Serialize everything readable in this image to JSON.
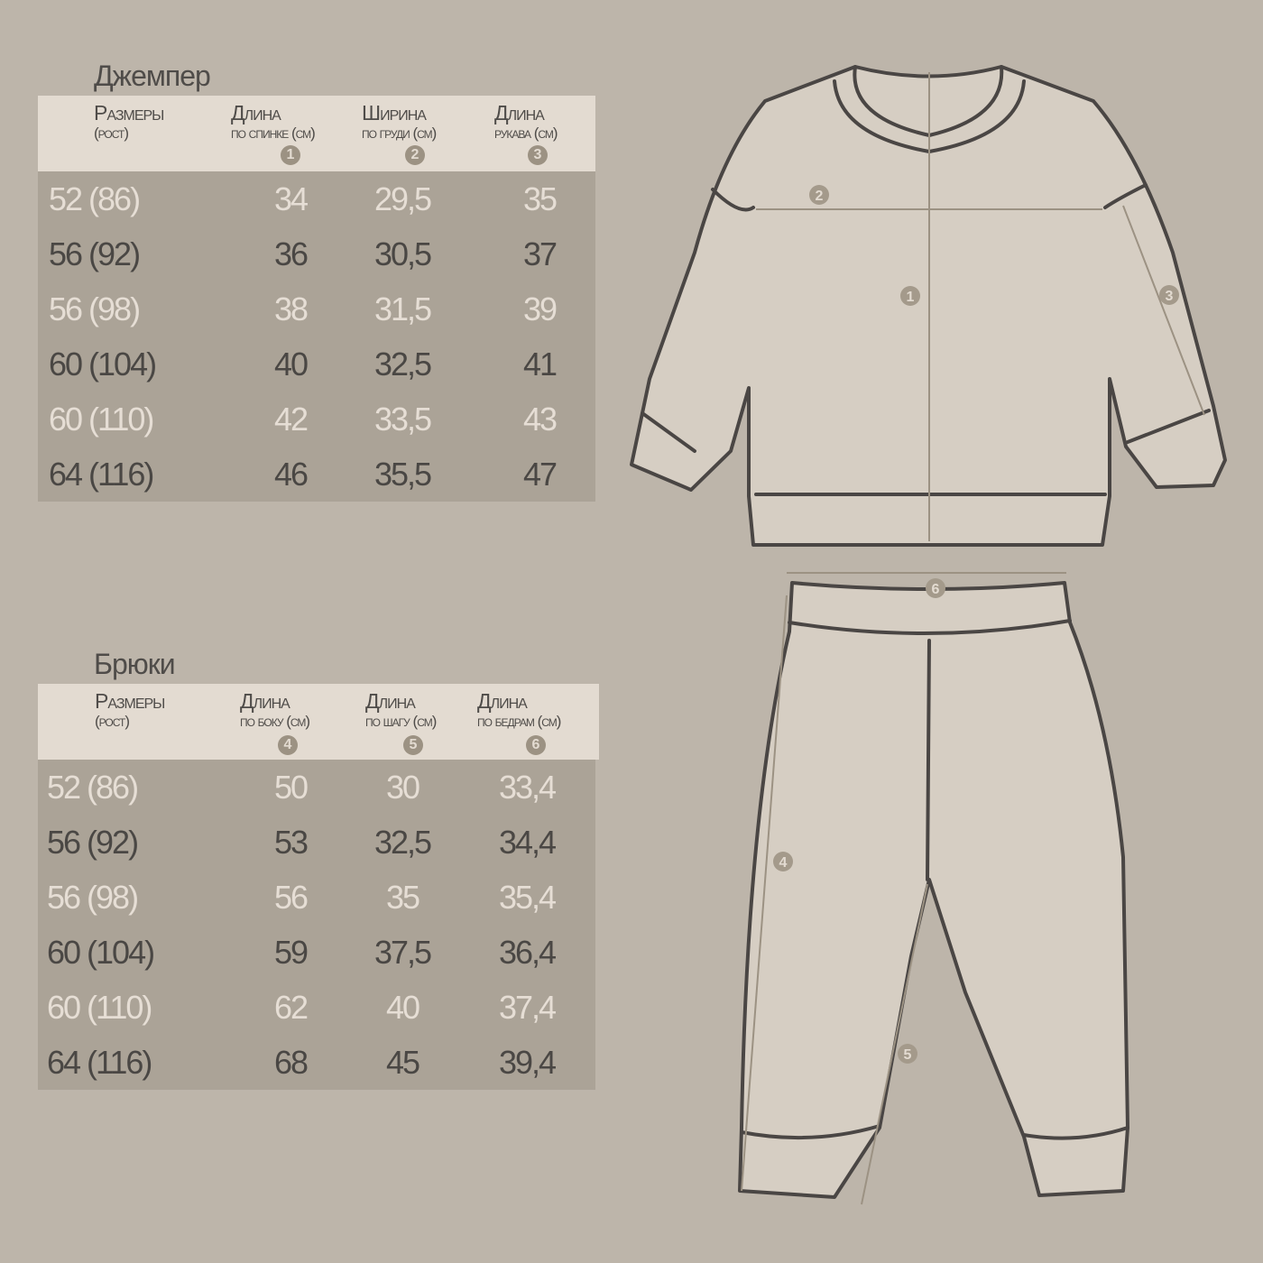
{
  "jumper": {
    "title": "Джемпер",
    "headers": [
      {
        "a": "Размеры",
        "b": "(рост)"
      },
      {
        "a": "Длина",
        "b": "по спинке (см)",
        "n": "1"
      },
      {
        "a": "Ширина",
        "b": "по груди (см)",
        "n": "2"
      },
      {
        "a": "Длина",
        "b": "рукава (см)",
        "n": "3"
      }
    ],
    "rows": [
      [
        "52 (86)",
        "34",
        "29,5",
        "35"
      ],
      [
        "56 (92)",
        "36",
        "30,5",
        "37"
      ],
      [
        "56 (98)",
        "38",
        "31,5",
        "39"
      ],
      [
        "60 (104)",
        "40",
        "32,5",
        "41"
      ],
      [
        "60 (110)",
        "42",
        "33,5",
        "43"
      ],
      [
        "64 (116)",
        "46",
        "35,5",
        "47"
      ]
    ]
  },
  "pants": {
    "title": "Брюки",
    "headers": [
      {
        "a": "Размеры",
        "b": "(рост)"
      },
      {
        "a": "Длина",
        "b": "по  боку (см)",
        "n": "4"
      },
      {
        "a": "Длина",
        "b": "по шагу (см)",
        "n": "5"
      },
      {
        "a": "Длина",
        "b": "по бедрам (см)",
        "n": "6"
      }
    ],
    "rows": [
      [
        "52 (86)",
        "50",
        "30",
        "33,4"
      ],
      [
        "56 (92)",
        "53",
        "32,5",
        "34,4"
      ],
      [
        "56 (98)",
        "56",
        "35",
        "35,4"
      ],
      [
        "60 (104)",
        "59",
        "37,5",
        "36,4"
      ],
      [
        "60 (110)",
        "62",
        "40",
        "37,4"
      ],
      [
        "64 (116)",
        "68",
        "45",
        "39,4"
      ]
    ]
  },
  "diagram_markers": [
    "1",
    "2",
    "3",
    "4",
    "5",
    "6"
  ],
  "colors": {
    "background": "#bdb5aa",
    "header_band": "#e3dbd1",
    "table_body": "#aba397",
    "text_dark": "#4a4744",
    "text_light": "#e6ded5",
    "marker": "#9c9283"
  }
}
